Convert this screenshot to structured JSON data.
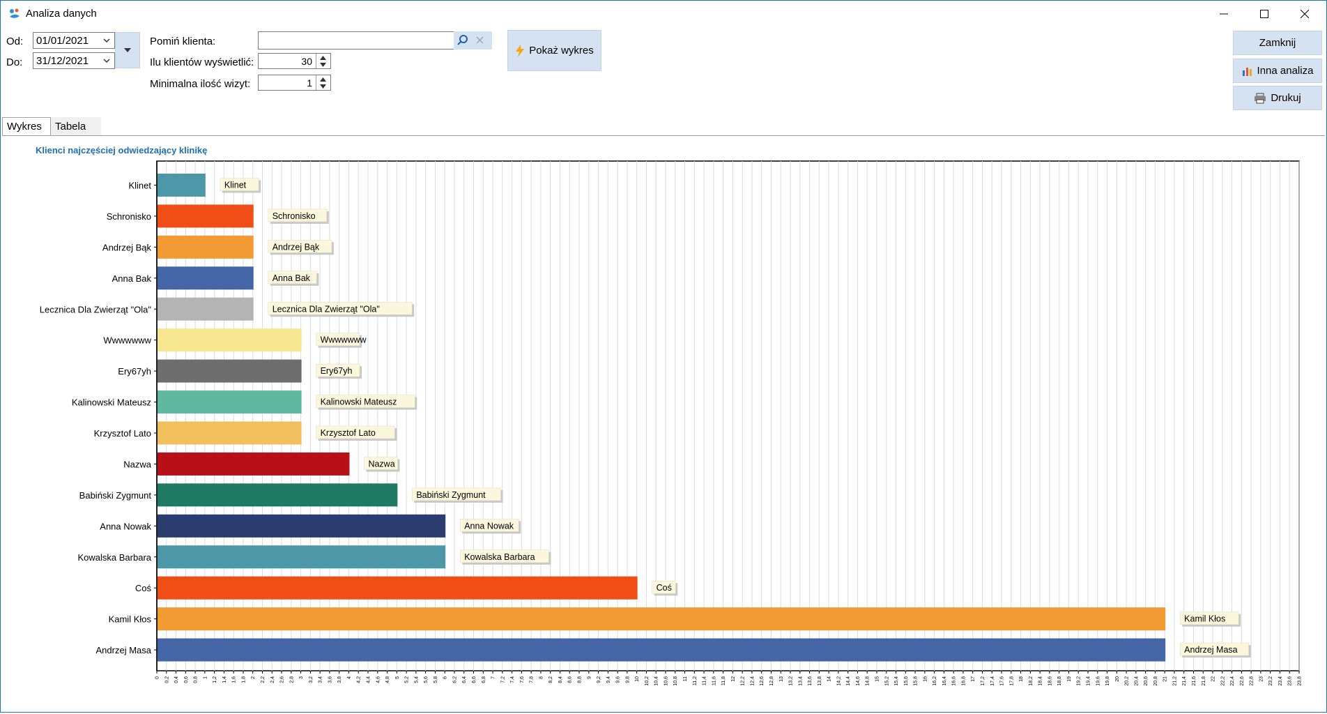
{
  "window": {
    "title": "Analiza danych"
  },
  "filters": {
    "from_label": "Od:",
    "from_value": "01/01/2021",
    "to_label": "Do:",
    "to_value": "31/12/2021",
    "skip_client_label": "Pomiń klienta:",
    "skip_client_value": "",
    "count_label": "Ilu klientów wyświetlić:",
    "count_value": "30",
    "min_visits_label": "Minimalna ilość wizyt:",
    "min_visits_value": "1"
  },
  "buttons": {
    "show_chart": "Pokaż wykres",
    "close": "Zamknij",
    "other_analysis": "Inna analiza",
    "print": "Drukuj"
  },
  "tabs": [
    "Wykres",
    "Tabela"
  ],
  "chart_data": {
    "type": "bar",
    "orientation": "horizontal",
    "title": "Klienci najczęściej odwiedzający klinikę",
    "xlim": [
      0,
      23.8
    ],
    "x_ticks": [
      "0",
      "0,2",
      "0,4",
      "0,6",
      "0,8",
      "1",
      "1,2",
      "1,4",
      "1,6",
      "1,8",
      "2",
      "2,2",
      "2,4",
      "2,6",
      "2,8",
      "3",
      "3,2",
      "3,4",
      "3,6",
      "3,8",
      "4",
      "4,2",
      "4,4",
      "4,6",
      "4,8",
      "5",
      "5,2",
      "5,4",
      "5,6",
      "5,8",
      "6",
      "6,2",
      "6,4",
      "6,6",
      "6,8",
      "7",
      "7,2",
      "7,4",
      "7,6",
      "7,8",
      "8",
      "8,2",
      "8,4",
      "8,6",
      "8,8",
      "9",
      "9,2",
      "9,4",
      "9,6",
      "9,8",
      "10",
      "10,2",
      "10,4",
      "10,6",
      "10,8",
      "11",
      "11,2",
      "11,4",
      "11,6",
      "11,8",
      "12",
      "12,2",
      "12,4",
      "12,6",
      "12,8",
      "13",
      "13,2",
      "13,4",
      "13,6",
      "13,8",
      "14",
      "14,2",
      "14,4",
      "14,6",
      "14,8",
      "15",
      "15,2",
      "15,4",
      "15,6",
      "15,8",
      "16",
      "16,2",
      "16,4",
      "16,6",
      "16,8",
      "17",
      "17,2",
      "17,4",
      "17,6",
      "17,8",
      "18",
      "18,2",
      "18,4",
      "18,6",
      "18,8",
      "19",
      "19,2",
      "19,4",
      "19,6",
      "19,8",
      "20",
      "20,2",
      "20,4",
      "20,6",
      "20,8",
      "21",
      "21,2",
      "21,4",
      "21,6",
      "21,8",
      "22",
      "22,2",
      "22,4",
      "22,6",
      "22,8",
      "23",
      "23,2",
      "23,4",
      "23,6",
      "23,8"
    ],
    "grid": true,
    "categories": [
      "Klinet",
      "Schronisko",
      "Andrzej Bąk",
      "Anna Bak",
      "Lecznica Dla Zwierząt \"Ola\"",
      "Wwwwwww",
      "Ery67yh",
      "Kalinowski Mateusz",
      "Krzysztof Lato",
      "Nazwa",
      "Babiński Zygmunt",
      "Anna Nowak",
      "Kowalska Barbara",
      "Coś",
      "Kamil Kłos",
      "Andrzej Masa"
    ],
    "values": [
      1,
      2,
      2,
      2,
      2,
      3,
      3,
      3,
      3,
      4,
      5,
      6,
      6,
      10,
      21,
      21
    ],
    "colors": [
      "#4d98a8",
      "#f04e17",
      "#f29b35",
      "#4466a6",
      "#b4b4b4",
      "#f5e68f",
      "#6e6e6e",
      "#5fb8a0",
      "#f2bf5e",
      "#b81018",
      "#1e7a62",
      "#2b3c6e",
      "#4d98a8",
      "#f04e17",
      "#f29b35",
      "#4466a6"
    ]
  }
}
